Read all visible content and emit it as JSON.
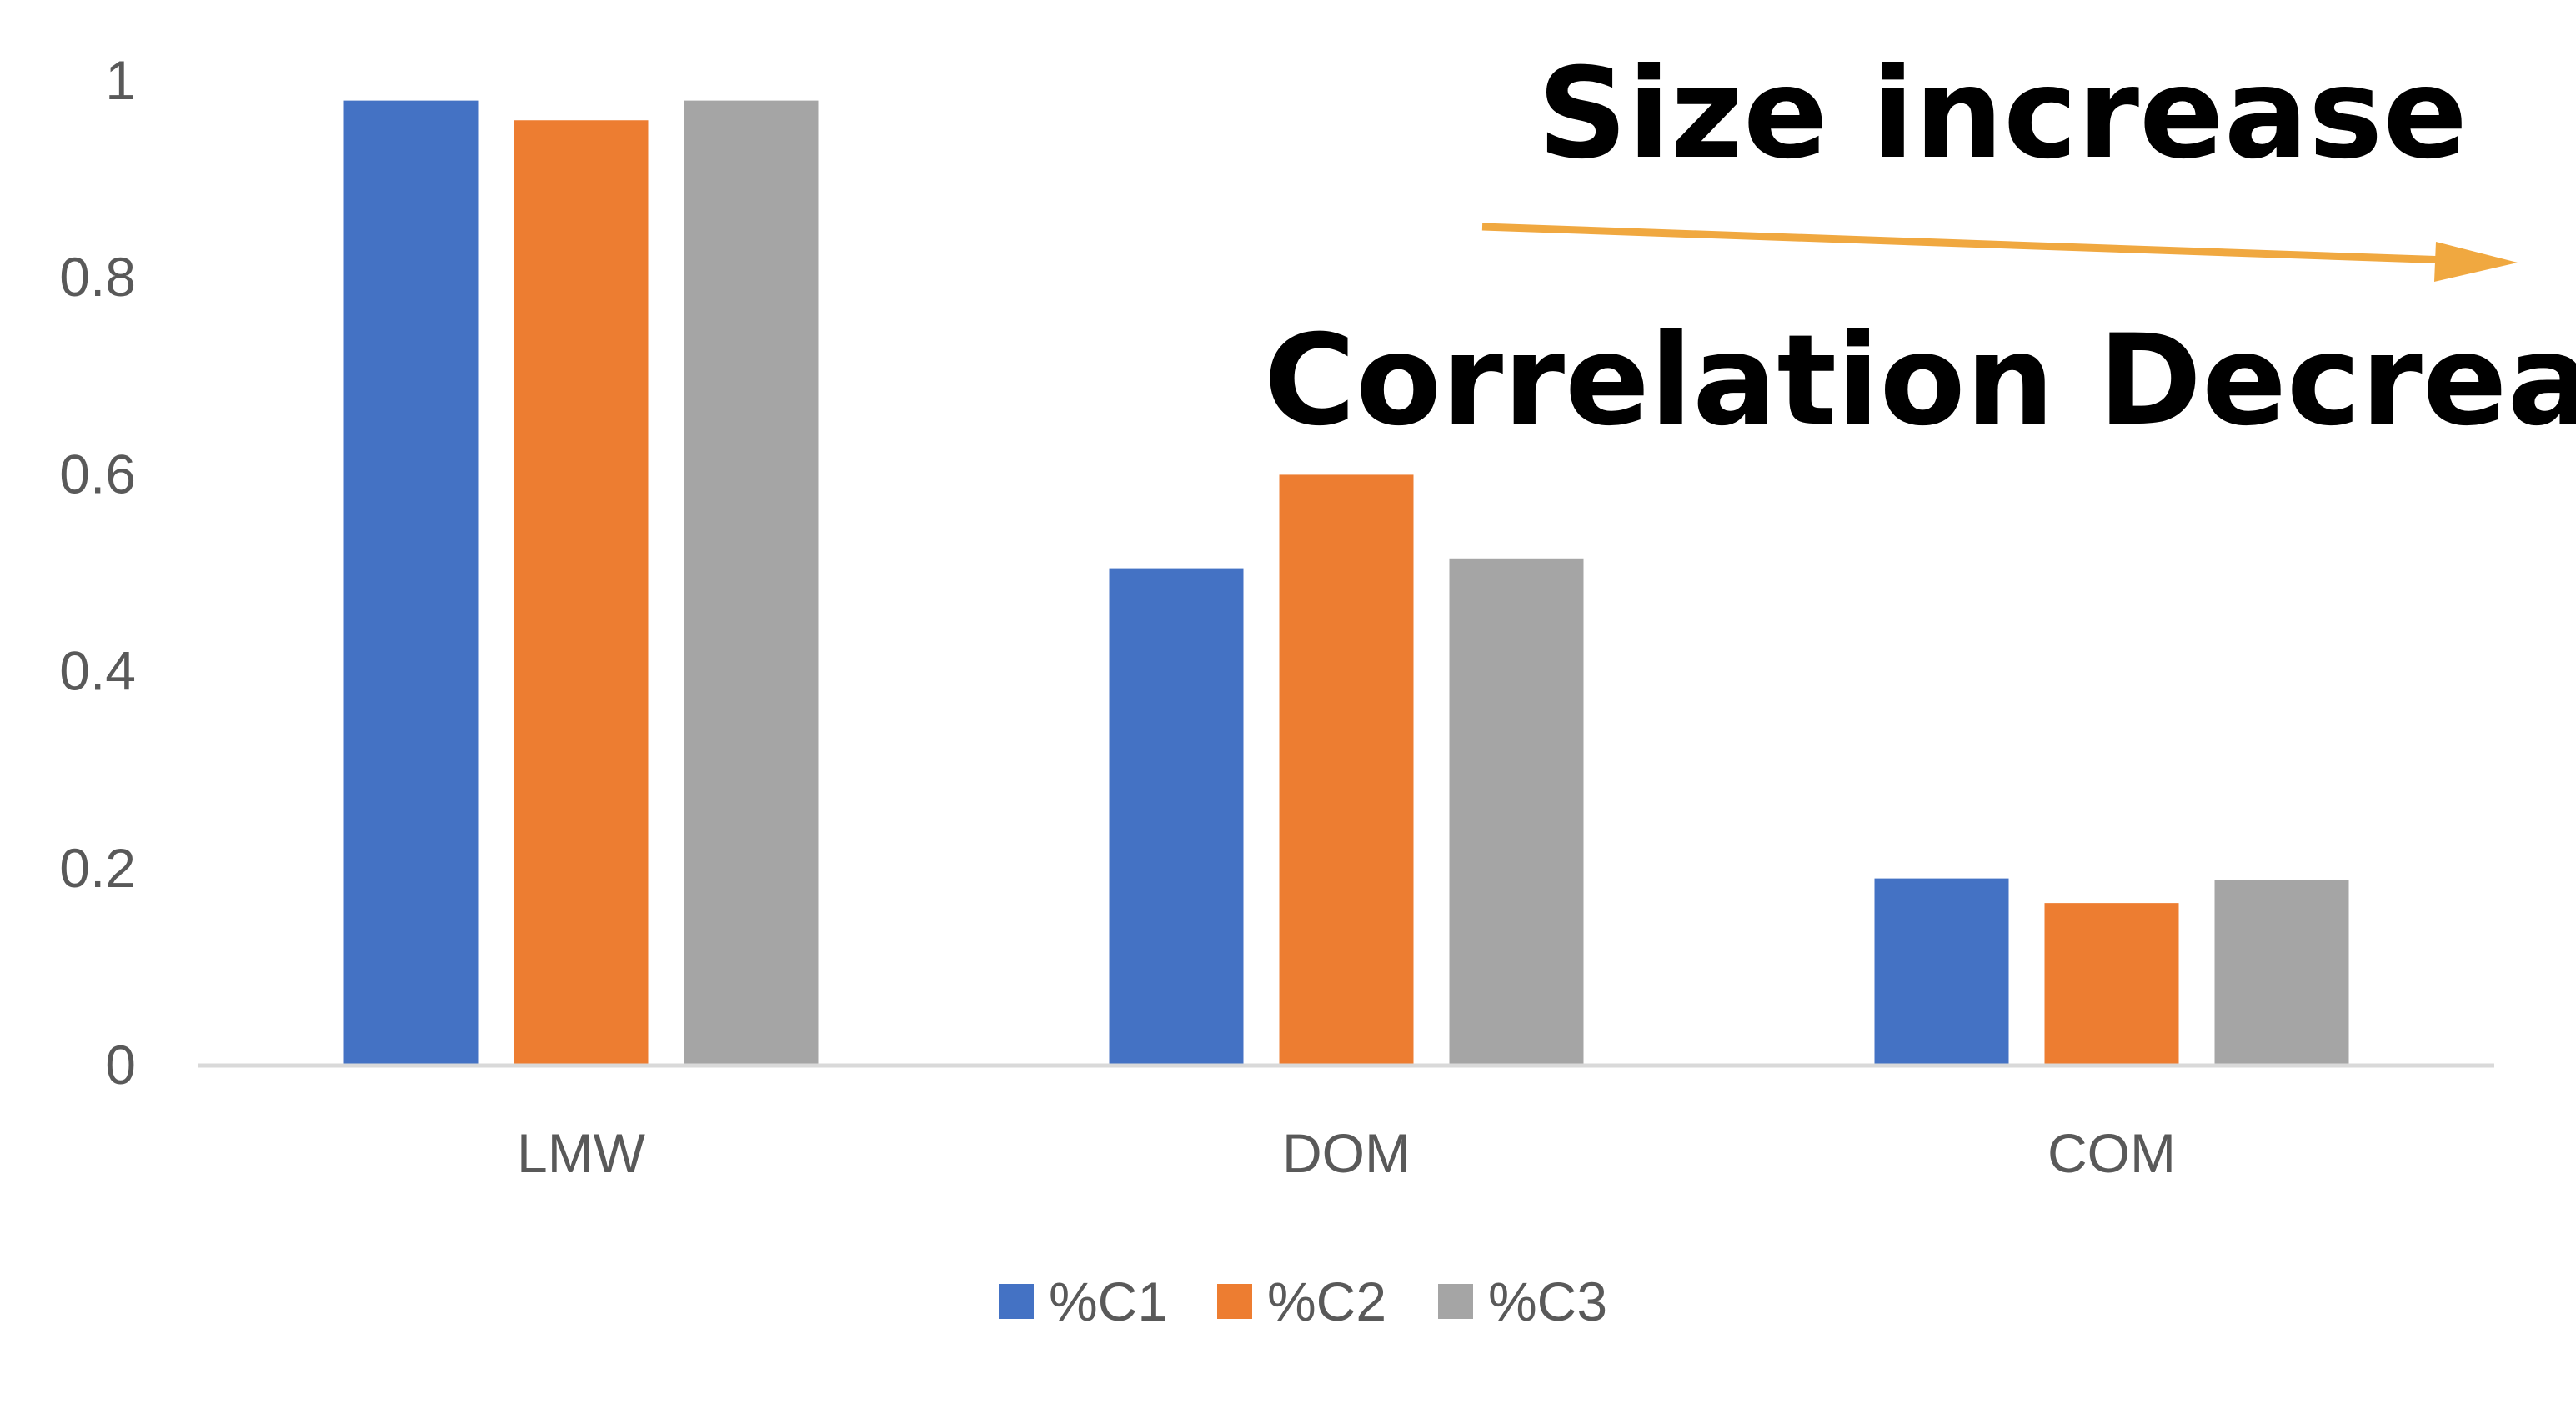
{
  "chart_data": {
    "type": "bar",
    "categories": [
      "LMW",
      "DOM",
      "COM"
    ],
    "series": [
      {
        "name": "%C1",
        "color": "#4472C4",
        "values": [
          0.98,
          0.505,
          0.19
        ]
      },
      {
        "name": "%C2",
        "color": "#ED7D31",
        "values": [
          0.96,
          0.6,
          0.165
        ]
      },
      {
        "name": "%C3",
        "color": "#A5A5A5",
        "values": [
          0.98,
          0.515,
          0.188
        ]
      }
    ],
    "yticks": [
      "0",
      "0.2",
      "0.4",
      "0.6",
      "0.8",
      "1"
    ],
    "ytick_values": [
      0,
      0.2,
      0.4,
      0.6,
      0.8,
      1
    ],
    "ylim": [
      0,
      1
    ],
    "title": "",
    "xlabel": "",
    "ylabel": "",
    "grid": false,
    "legend_position": "bottom",
    "annotations": {
      "top": "Size increase",
      "bottom": "Correlation Decrease",
      "arrow_color": "#F0A840"
    }
  }
}
